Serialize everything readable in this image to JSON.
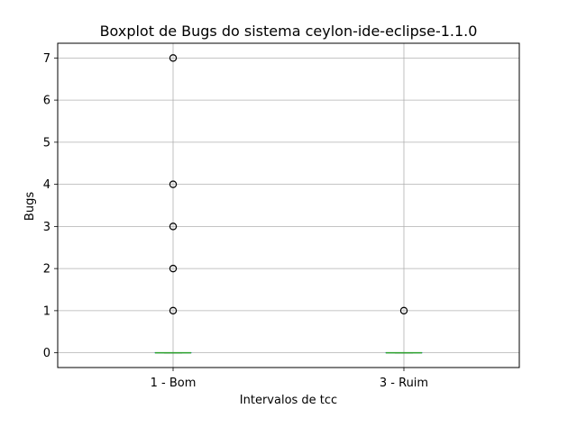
{
  "chart_data": {
    "type": "box",
    "title": "Boxplot de Bugs do sistema ceylon-ide-eclipse-1.1.0",
    "xlabel": "Intervalos de tcc",
    "ylabel": "Bugs",
    "categories": [
      "1 - Bom",
      "3 - Ruim"
    ],
    "ylim": [
      -0.35,
      7.35
    ],
    "yticks": [
      0,
      1,
      2,
      3,
      4,
      5,
      6,
      7
    ],
    "grid": true,
    "boxes": [
      {
        "name": "1 - Bom",
        "q1": 0,
        "median": 0,
        "q3": 0,
        "whisker_low": 0,
        "whisker_high": 0,
        "fliers": [
          1,
          2,
          3,
          4,
          7
        ]
      },
      {
        "name": "3 - Ruim",
        "q1": 0,
        "median": 0,
        "q3": 0,
        "whisker_low": 0,
        "whisker_high": 0,
        "fliers": [
          1
        ]
      }
    ],
    "colors": {
      "median": "#2ca02c",
      "box": "#1f77b4",
      "grid": "#b0b0b0",
      "flier": "#000000"
    }
  }
}
